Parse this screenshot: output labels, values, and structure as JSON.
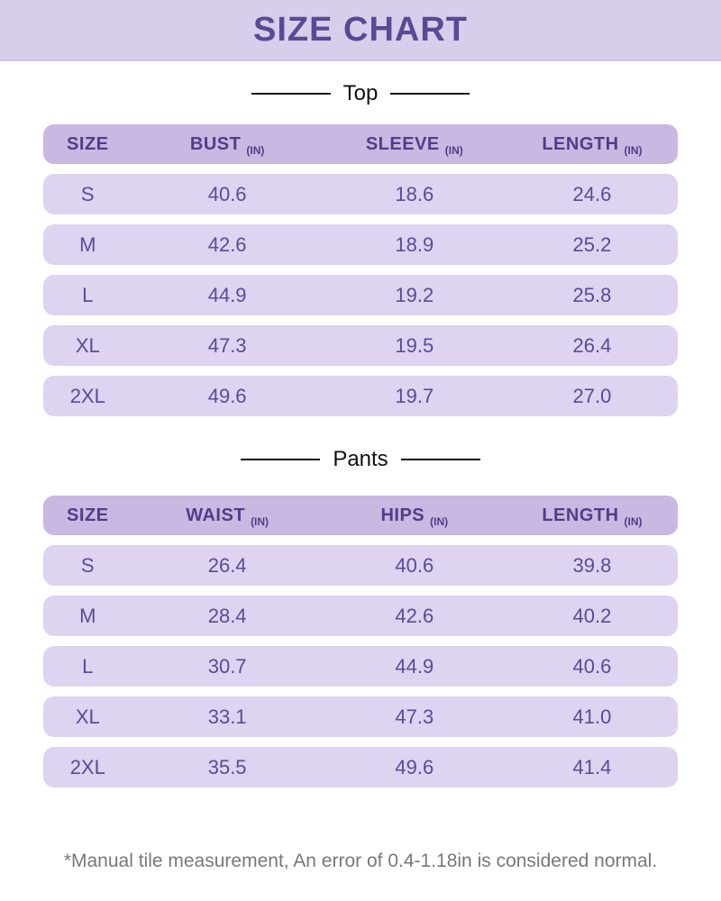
{
  "title": "SIZE CHART",
  "colors": {
    "banner_bg": "#d9cdec",
    "header_row_bg": "#c8b8e2",
    "data_row_bg": "#ded3f0",
    "header_text": "#4f3e87",
    "data_text": "#5c4a96",
    "title_text": "#5b4994",
    "divider_text": "#111111",
    "footnote_text": "#787878"
  },
  "tables": [
    {
      "section_label": "Top",
      "columns": [
        {
          "label": "SIZE",
          "unit": ""
        },
        {
          "label": "BUST",
          "unit": "(IN)"
        },
        {
          "label": "SLEEVE",
          "unit": "(IN)"
        },
        {
          "label": "LENGTH",
          "unit": "(IN)"
        }
      ],
      "rows": [
        [
          "S",
          "40.6",
          "18.6",
          "24.6"
        ],
        [
          "M",
          "42.6",
          "18.9",
          "25.2"
        ],
        [
          "L",
          "44.9",
          "19.2",
          "25.8"
        ],
        [
          "XL",
          "47.3",
          "19.5",
          "26.4"
        ],
        [
          "2XL",
          "49.6",
          "19.7",
          "27.0"
        ]
      ]
    },
    {
      "section_label": "Pants",
      "columns": [
        {
          "label": "SIZE",
          "unit": ""
        },
        {
          "label": "WAIST",
          "unit": "(IN)"
        },
        {
          "label": "HIPS",
          "unit": "(IN)"
        },
        {
          "label": "LENGTH",
          "unit": "(IN)"
        }
      ],
      "rows": [
        [
          "S",
          "26.4",
          "40.6",
          "39.8"
        ],
        [
          "M",
          "28.4",
          "42.6",
          "40.2"
        ],
        [
          "L",
          "30.7",
          "44.9",
          "40.6"
        ],
        [
          "XL",
          "33.1",
          "47.3",
          "41.0"
        ],
        [
          "2XL",
          "35.5",
          "49.6",
          "41.4"
        ]
      ]
    }
  ],
  "footnote": "*Manual tile measurement, An error of 0.4-1.18in is considered normal."
}
